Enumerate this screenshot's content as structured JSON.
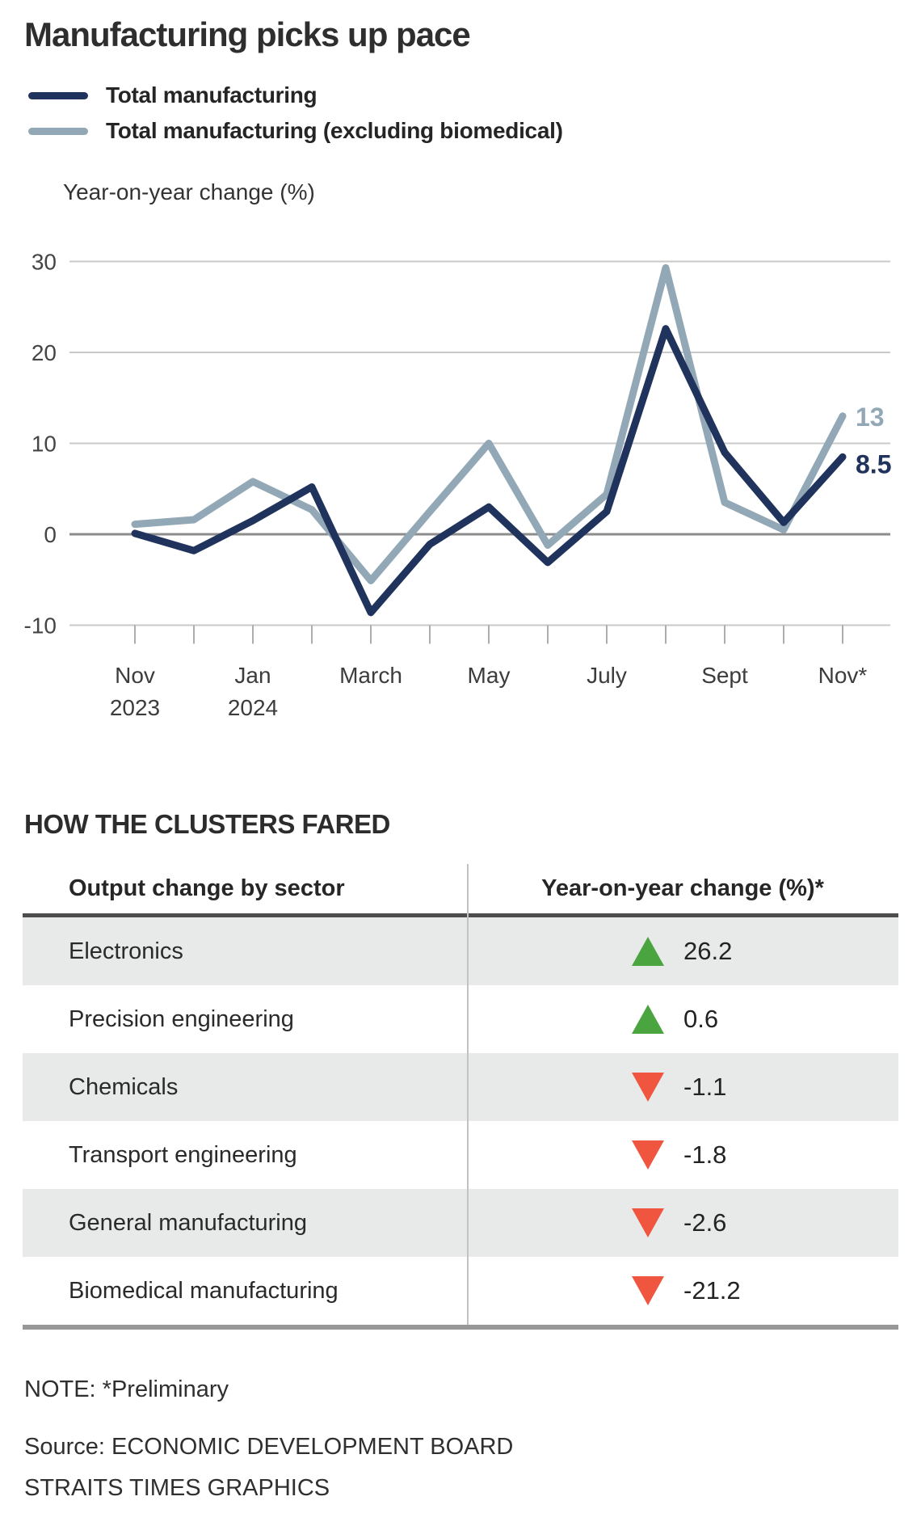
{
  "title": "Manufacturing picks up pace",
  "legend": [
    {
      "label": "Total manufacturing",
      "color": "#20335c"
    },
    {
      "label": "Total manufacturing (excluding biomedical)",
      "color": "#93a8b6"
    }
  ],
  "chart_data": {
    "type": "line",
    "title": "Year-on-year change (%)",
    "n_points": 13,
    "x_ticks": [
      {
        "index": 0,
        "lines": [
          "Nov",
          "2023"
        ]
      },
      {
        "index": 2,
        "lines": [
          "Jan",
          "2024"
        ]
      },
      {
        "index": 4,
        "lines": [
          "March"
        ]
      },
      {
        "index": 6,
        "lines": [
          "May"
        ]
      },
      {
        "index": 8,
        "lines": [
          "July"
        ]
      },
      {
        "index": 10,
        "lines": [
          "Sept"
        ]
      },
      {
        "index": 12,
        "lines": [
          "Nov*"
        ]
      }
    ],
    "series": [
      {
        "name": "Total manufacturing",
        "color": "#20335c",
        "values": [
          0.1,
          -1.8,
          1.5,
          5.2,
          -8.6,
          -1.1,
          3.0,
          -3.1,
          2.5,
          22.6,
          9.0,
          1.3,
          8.5
        ],
        "end_label": "8.5"
      },
      {
        "name": "Total manufacturing (excluding biomedical)",
        "color": "#93a8b6",
        "values": [
          1.1,
          1.6,
          5.8,
          2.7,
          -5.1,
          2.5,
          10.0,
          -1.2,
          4.4,
          29.3,
          3.5,
          0.5,
          13
        ],
        "end_label": "13"
      }
    ],
    "ylim": [
      -10,
      30
    ],
    "yticks": [
      30,
      20,
      10,
      0,
      -10
    ],
    "grid": true,
    "grid_color": "#c9c9c9",
    "zero_line_color": "#8c8c8c",
    "legend_position": "top-left"
  },
  "table": {
    "heading": "HOW THE CLUSTERS FARED",
    "col1_header": "Output change by sector",
    "col2_header": "Year-on-year change (%)*",
    "up_color": "#4aa440",
    "down_color": "#f05540",
    "rows": [
      {
        "sector": "Electronics",
        "direction": "up",
        "value": "26.2"
      },
      {
        "sector": "Precision engineering",
        "direction": "up",
        "value": "0.6"
      },
      {
        "sector": "Chemicals",
        "direction": "down",
        "value": "-1.1"
      },
      {
        "sector": "Transport engineering",
        "direction": "down",
        "value": "-1.8"
      },
      {
        "sector": "General manufacturing",
        "direction": "down",
        "value": "-2.6"
      },
      {
        "sector": "Biomedical manufacturing",
        "direction": "down",
        "value": "-21.2"
      }
    ]
  },
  "footer": {
    "note": "NOTE: *Preliminary",
    "source": "Source: ECONOMIC DEVELOPMENT BOARD",
    "credit": "STRAITS TIMES GRAPHICS"
  }
}
